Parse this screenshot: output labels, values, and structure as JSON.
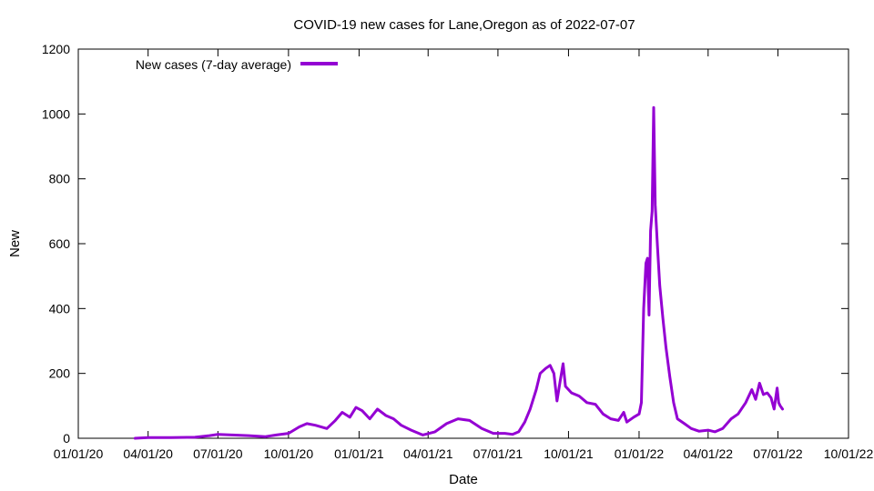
{
  "chart_data": {
    "type": "line",
    "title": "COVID-19 new cases for Lane,Oregon as of 2022-07-07",
    "xlabel": "Date",
    "ylabel": "New",
    "xlim": [
      "2020-01-01",
      "2022-10-01"
    ],
    "ylim": [
      0,
      1200
    ],
    "x_ticks": [
      "2020-01-01",
      "2020-04-01",
      "2020-07-01",
      "2020-10-01",
      "2021-01-01",
      "2021-04-01",
      "2021-07-01",
      "2021-10-01",
      "2022-01-01",
      "2022-04-01",
      "2022-07-01",
      "2022-10-01"
    ],
    "x_tick_labels": [
      "01/01/20",
      "04/01/20",
      "07/01/20",
      "10/01/20",
      "01/01/21",
      "04/01/21",
      "07/01/21",
      "10/01/21",
      "01/01/22",
      "04/01/22",
      "07/01/22",
      "10/01/22"
    ],
    "y_ticks": [
      0,
      200,
      400,
      600,
      800,
      1000,
      1200
    ],
    "y_tick_labels": [
      "0",
      "200",
      "400",
      "600",
      "800",
      "1000",
      "1200"
    ],
    "grid": false,
    "legend_position": "top-left",
    "series": [
      {
        "name": "New cases (7-day average)",
        "color": "#9400d3",
        "points": [
          [
            "2020-03-15",
            0
          ],
          [
            "2020-04-01",
            2
          ],
          [
            "2020-05-01",
            2
          ],
          [
            "2020-06-01",
            3
          ],
          [
            "2020-06-20",
            8
          ],
          [
            "2020-07-01",
            12
          ],
          [
            "2020-07-20",
            10
          ],
          [
            "2020-08-10",
            8
          ],
          [
            "2020-09-01",
            5
          ],
          [
            "2020-09-15",
            10
          ],
          [
            "2020-10-01",
            15
          ],
          [
            "2020-10-15",
            35
          ],
          [
            "2020-10-25",
            45
          ],
          [
            "2020-11-05",
            40
          ],
          [
            "2020-11-20",
            30
          ],
          [
            "2020-12-01",
            55
          ],
          [
            "2020-12-10",
            80
          ],
          [
            "2020-12-20",
            65
          ],
          [
            "2020-12-28",
            95
          ],
          [
            "2021-01-05",
            85
          ],
          [
            "2021-01-15",
            60
          ],
          [
            "2021-01-25",
            90
          ],
          [
            "2021-02-05",
            70
          ],
          [
            "2021-02-15",
            60
          ],
          [
            "2021-02-25",
            40
          ],
          [
            "2021-03-10",
            25
          ],
          [
            "2021-03-25",
            10
          ],
          [
            "2021-04-10",
            20
          ],
          [
            "2021-04-25",
            45
          ],
          [
            "2021-05-10",
            60
          ],
          [
            "2021-05-25",
            55
          ],
          [
            "2021-06-10",
            30
          ],
          [
            "2021-06-25",
            15
          ],
          [
            "2021-07-10",
            15
          ],
          [
            "2021-07-20",
            12
          ],
          [
            "2021-07-28",
            20
          ],
          [
            "2021-08-05",
            50
          ],
          [
            "2021-08-12",
            90
          ],
          [
            "2021-08-20",
            150
          ],
          [
            "2021-08-25",
            200
          ],
          [
            "2021-09-01",
            215
          ],
          [
            "2021-09-07",
            225
          ],
          [
            "2021-09-12",
            200
          ],
          [
            "2021-09-16",
            115
          ],
          [
            "2021-09-20",
            175
          ],
          [
            "2021-09-24",
            230
          ],
          [
            "2021-09-27",
            160
          ],
          [
            "2021-10-05",
            140
          ],
          [
            "2021-10-15",
            130
          ],
          [
            "2021-10-25",
            110
          ],
          [
            "2021-11-05",
            105
          ],
          [
            "2021-11-15",
            75
          ],
          [
            "2021-11-25",
            60
          ],
          [
            "2021-12-05",
            55
          ],
          [
            "2021-12-12",
            80
          ],
          [
            "2021-12-16",
            50
          ],
          [
            "2021-12-25",
            65
          ],
          [
            "2022-01-01",
            75
          ],
          [
            "2022-01-04",
            110
          ],
          [
            "2022-01-07",
            400
          ],
          [
            "2022-01-10",
            540
          ],
          [
            "2022-01-12",
            555
          ],
          [
            "2022-01-14",
            380
          ],
          [
            "2022-01-16",
            640
          ],
          [
            "2022-01-18",
            700
          ],
          [
            "2022-01-20",
            1020
          ],
          [
            "2022-01-22",
            720
          ],
          [
            "2022-01-25",
            590
          ],
          [
            "2022-01-28",
            470
          ],
          [
            "2022-02-01",
            370
          ],
          [
            "2022-02-05",
            280
          ],
          [
            "2022-02-10",
            190
          ],
          [
            "2022-02-15",
            110
          ],
          [
            "2022-02-20",
            60
          ],
          [
            "2022-03-01",
            45
          ],
          [
            "2022-03-10",
            30
          ],
          [
            "2022-03-20",
            22
          ],
          [
            "2022-04-01",
            25
          ],
          [
            "2022-04-10",
            20
          ],
          [
            "2022-04-20",
            30
          ],
          [
            "2022-05-01",
            60
          ],
          [
            "2022-05-10",
            75
          ],
          [
            "2022-05-20",
            110
          ],
          [
            "2022-05-28",
            150
          ],
          [
            "2022-06-02",
            120
          ],
          [
            "2022-06-07",
            170
          ],
          [
            "2022-06-12",
            135
          ],
          [
            "2022-06-17",
            140
          ],
          [
            "2022-06-22",
            125
          ],
          [
            "2022-06-26",
            90
          ],
          [
            "2022-06-30",
            155
          ],
          [
            "2022-07-02",
            110
          ],
          [
            "2022-07-04",
            100
          ],
          [
            "2022-07-07",
            90
          ]
        ]
      }
    ]
  }
}
